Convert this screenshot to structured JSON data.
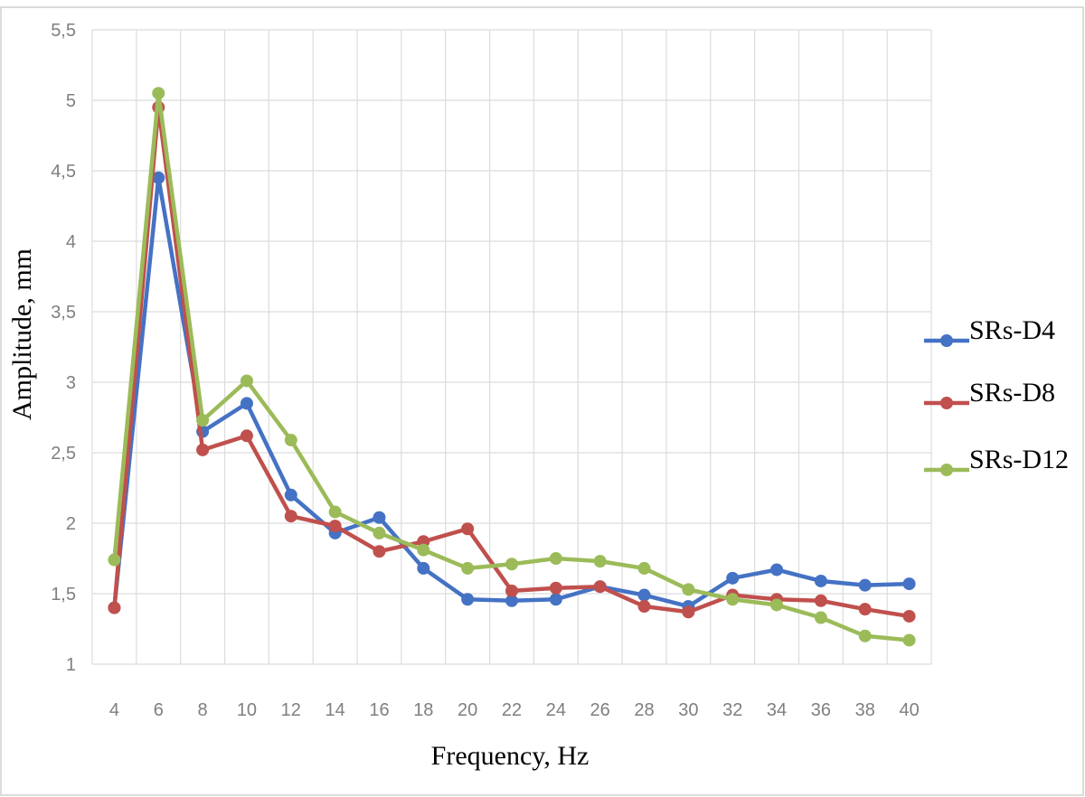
{
  "chart_data": {
    "type": "line",
    "title": "",
    "xlabel": "Frequency, Hz",
    "ylabel": "Amplitude, mm",
    "x": [
      4,
      6,
      8,
      10,
      12,
      14,
      16,
      18,
      20,
      22,
      24,
      26,
      28,
      30,
      32,
      34,
      36,
      38,
      40
    ],
    "ylim": [
      1,
      5.5
    ],
    "yticks": [
      "1",
      "1,5",
      "2",
      "2,5",
      "3",
      "3,5",
      "4",
      "4,5",
      "5",
      "5,5"
    ],
    "grid": true,
    "legend_position": "right",
    "series": [
      {
        "name": "SRs-D4",
        "color": "#4472c4",
        "values": [
          1.4,
          4.45,
          2.65,
          2.85,
          2.2,
          1.93,
          2.04,
          1.68,
          1.46,
          1.45,
          1.46,
          1.55,
          1.49,
          1.41,
          1.61,
          1.67,
          1.59,
          1.56,
          1.57
        ]
      },
      {
        "name": "SRs-D8",
        "color": "#c0504d",
        "values": [
          1.4,
          4.95,
          2.52,
          2.62,
          2.05,
          1.98,
          1.8,
          1.87,
          1.96,
          1.52,
          1.54,
          1.55,
          1.41,
          1.37,
          1.49,
          1.46,
          1.45,
          1.39,
          1.34
        ]
      },
      {
        "name": "SRs-D12",
        "color": "#9bbb59",
        "values": [
          1.74,
          5.05,
          2.73,
          3.01,
          2.59,
          2.08,
          1.93,
          1.81,
          1.68,
          1.71,
          1.75,
          1.73,
          1.68,
          1.53,
          1.46,
          1.42,
          1.33,
          1.2,
          1.17
        ]
      }
    ]
  }
}
